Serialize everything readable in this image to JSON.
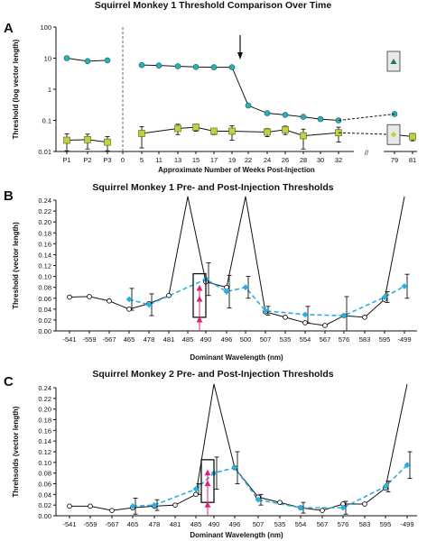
{
  "chart_data": [
    {
      "panel_label": "A",
      "type": "line",
      "title": "Squirrel Monkey 1 Threshold Comparison Over Time",
      "xlabel": "Approximate Number of Weeks Post-Injection",
      "ylabel": "Threshold (log vector length)",
      "yscale": "log",
      "ylim": [
        0.01,
        100
      ],
      "y_ticks": [
        "0.01",
        "0.1",
        "1",
        "10",
        "100"
      ],
      "x_ticks": [
        "P1",
        "P2",
        "P3",
        "0",
        "5",
        "11",
        "13",
        "15",
        "17",
        "19",
        "22",
        "24",
        "26",
        "28",
        "30",
        "32",
        "79",
        "81"
      ],
      "series": [
        {
          "color": "#2ab0b5",
          "marker": "circle",
          "segments": [
            {
              "x": [
                "P1",
                "P2",
                "P3"
              ],
              "values": [
                10,
                8,
                8.5
              ]
            },
            {
              "x": [
                "5",
                "11",
                "13",
                "15",
                "17",
                "19",
                "22",
                "24",
                "26",
                "28",
                "30",
                "32"
              ],
              "values": [
                6,
                5.8,
                5.5,
                5.2,
                5.1,
                5.1,
                0.3,
                0.17,
                0.15,
                0.13,
                0.11,
                0.1
              ]
            },
            {
              "x": [
                "79"
              ],
              "values": [
                0.16
              ]
            }
          ]
        },
        {
          "color": "#c3cf46",
          "marker": "square",
          "segments": [
            {
              "x": [
                "P1",
                "P2",
                "P3"
              ],
              "values": [
                0.023,
                0.024,
                0.02
              ],
              "err": [
                0.014,
                0.012,
                0.01
              ]
            },
            {
              "x": [
                "5",
                "13",
                "15",
                "17",
                "19",
                "24",
                "26",
                "28",
                "32"
              ],
              "values": [
                0.038,
                0.055,
                0.06,
                0.045,
                0.045,
                0.042,
                0.05,
                0.032,
                0.04
              ],
              "err": [
                0.025,
                0.02,
                0.015,
                0.01,
                0.022,
                0.012,
                0.015,
                0.02,
                0.02
              ]
            },
            {
              "x": [
                "79",
                "81"
              ],
              "values": [
                0.035,
                0.03
              ],
              "err": [
                0.012,
                0.008
              ]
            }
          ]
        }
      ],
      "annotations": {
        "arrow_at": "19",
        "axis_break_between": [
          "32",
          "79"
        ],
        "boxed_markers_at": "79"
      }
    },
    {
      "panel_label": "B",
      "type": "line",
      "title": "Squirrel Monkey 1 Pre- and Post-Injection Thresholds",
      "xlabel": "Dominant Wavelength (nm)",
      "ylabel": "Threshold (vector length)",
      "ylim": [
        0,
        0.24
      ],
      "y_ticks": [
        "0.00",
        "0.02",
        "0.04",
        "0.06",
        "0.08",
        "0.10",
        "0.12",
        "0.14",
        "0.16",
        "0.18",
        "0.20",
        "0.22",
        "0.24"
      ],
      "x_ticks": [
        "-541",
        "-559",
        "-567",
        "465",
        "478",
        "481",
        "485",
        "490",
        "496",
        "500",
        "507",
        "535",
        "554",
        "567",
        "576",
        "583",
        "595",
        "-499"
      ],
      "series": [
        {
          "color": "#111111",
          "marker": "open-circle",
          "x": [
            "-541",
            "-559",
            "-567",
            "465",
            "478",
            "481",
            "485",
            "490",
            "496",
            "500",
            "507",
            "535",
            "554",
            "567",
            "576",
            "583",
            "595",
            "-499"
          ],
          "values": [
            0.062,
            0.063,
            0.055,
            0.04,
            0.05,
            0.065,
            0.3,
            0.09,
            0.08,
            0.3,
            0.035,
            0.025,
            0.015,
            0.01,
            0.028,
            0.025,
            0.058,
            0.3
          ]
        },
        {
          "color": "#2ab0e0",
          "marker": "diamond",
          "x": [
            "465",
            "478",
            "490",
            "496",
            "500",
            "507",
            "554",
            "576",
            "595",
            "-499"
          ],
          "values": [
            0.058,
            0.048,
            0.095,
            0.072,
            0.08,
            0.037,
            0.03,
            0.028,
            0.062,
            0.082
          ],
          "err": [
            0.02,
            0.02,
            0.03,
            0.03,
            0.02,
            0.008,
            0.015,
            0.035,
            0.01,
            0.022
          ]
        },
        {
          "color": "#e0207a",
          "marker": "triangle-up",
          "x": [
            "489",
            "489",
            "489"
          ],
          "values": [
            0.078,
            0.058,
            0.02
          ]
        }
      ]
    },
    {
      "panel_label": "C",
      "type": "line",
      "title": "Squirrel Monkey 2 Pre- and Post-Injection Thresholds",
      "xlabel": "Dominant Wavelength (nm)",
      "ylabel": "Threhsolds (vector length)",
      "ylim": [
        0,
        0.24
      ],
      "y_ticks": [
        "0.00",
        "0.02",
        "0.04",
        "0.06",
        "0.08",
        "0.10",
        "0.12",
        "0.14",
        "0.16",
        "0.18",
        "0.20",
        "0.22",
        "0.24"
      ],
      "x_ticks": [
        "-541",
        "-559",
        "-567",
        "465",
        "478",
        "481",
        "485",
        "490",
        "496",
        "507",
        "535",
        "554",
        "567",
        "576",
        "583",
        "595",
        "-499"
      ],
      "series": [
        {
          "color": "#111111",
          "marker": "open-circle",
          "x": [
            "-541",
            "-559",
            "-567",
            "465",
            "478",
            "481",
            "485",
            "490",
            "496",
            "507",
            "535",
            "554",
            "567",
            "576",
            "583",
            "595",
            "-499"
          ],
          "values": [
            0.018,
            0.018,
            0.01,
            0.015,
            0.018,
            0.02,
            0.04,
            0.3,
            0.09,
            0.035,
            0.025,
            0.015,
            0.01,
            0.022,
            0.022,
            0.052,
            0.3
          ]
        },
        {
          "color": "#2ab0e0",
          "marker": "diamond",
          "x": [
            "465",
            "478",
            "485",
            "490",
            "496",
            "507",
            "554",
            "576",
            "595",
            "-499"
          ],
          "values": [
            0.018,
            0.02,
            0.05,
            0.08,
            0.09,
            0.03,
            0.015,
            0.015,
            0.055,
            0.095
          ],
          "err": [
            0.015,
            0.01,
            0.01,
            0.03,
            0.03,
            0.01,
            0.01,
            0.012,
            0.01,
            0.025
          ]
        },
        {
          "color": "#e0207a",
          "marker": "triangle-up",
          "x": [
            "489",
            "489",
            "489"
          ],
          "values": [
            0.08,
            0.06,
            0.02
          ]
        }
      ]
    }
  ]
}
